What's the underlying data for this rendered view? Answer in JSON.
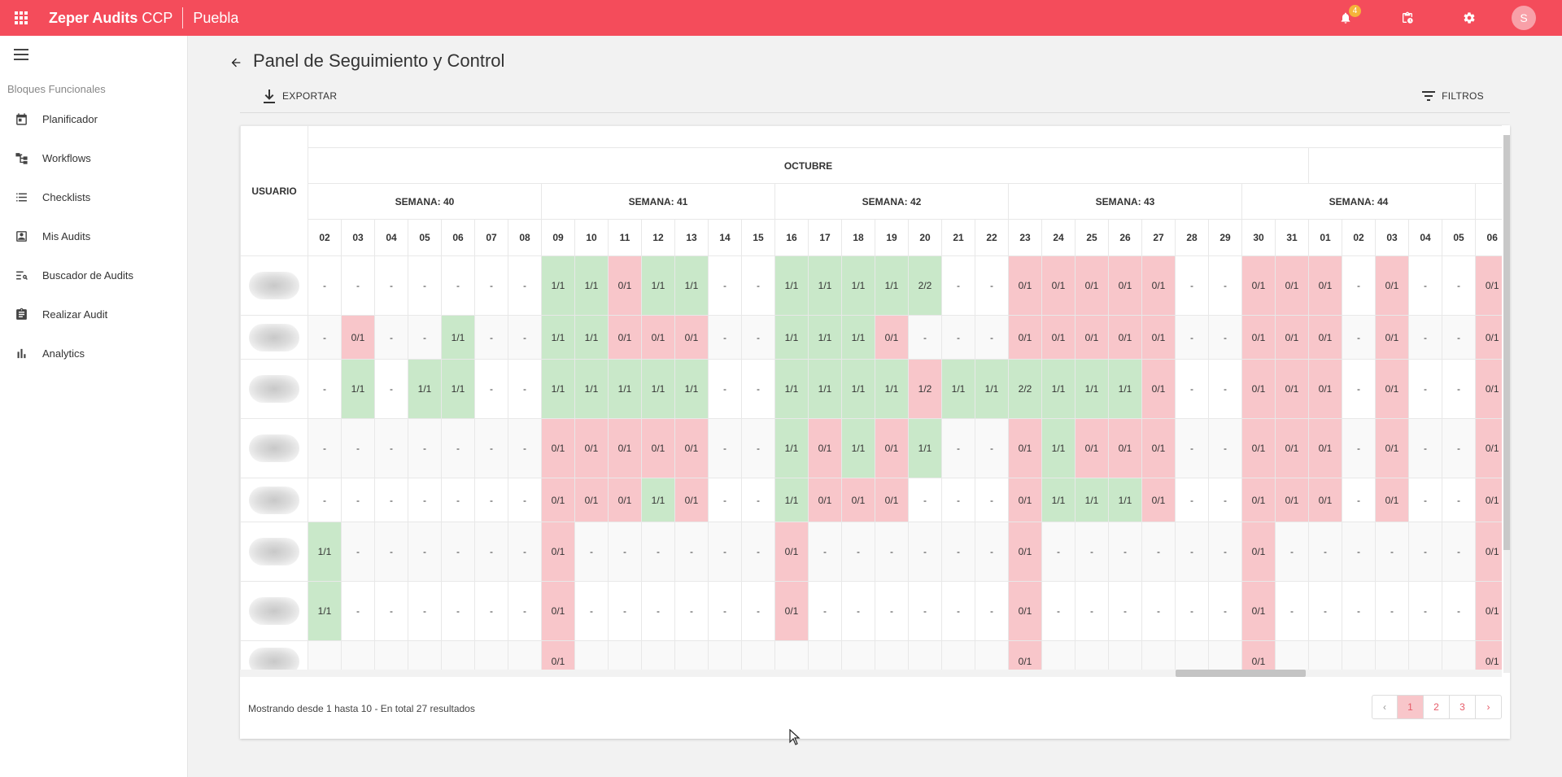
{
  "app": {
    "brand": "Zeper Audits",
    "brand_suffix": "CCP",
    "site": "Puebla",
    "notification_count": "4",
    "avatar_letter": "S",
    "accent_color": "#f44c5b"
  },
  "sidebar": {
    "section_title": "Bloques Funcionales",
    "items": [
      {
        "label": "Planificador",
        "icon": "calendar-icon"
      },
      {
        "label": "Workflows",
        "icon": "workflow-icon"
      },
      {
        "label": "Checklists",
        "icon": "list-icon"
      },
      {
        "label": "Mis Audits",
        "icon": "user-box-icon"
      },
      {
        "label": "Buscador de Audits",
        "icon": "search-list-icon"
      },
      {
        "label": "Realizar Audit",
        "icon": "clipboard-icon"
      },
      {
        "label": "Analytics",
        "icon": "bar-chart-icon"
      }
    ]
  },
  "page": {
    "title": "Panel de Seguimiento y Control",
    "export_label": "EXPORTAR",
    "filter_label": "FILTROS"
  },
  "grid": {
    "user_header": "USUARIO",
    "month": "OCTUBRE",
    "weeks": [
      {
        "label": "SEMANA: 40",
        "days": 7
      },
      {
        "label": "SEMANA: 41",
        "days": 7
      },
      {
        "label": "SEMANA: 42",
        "days": 7
      },
      {
        "label": "SEMANA: 43",
        "days": 7
      },
      {
        "label": "SEMANA: 44",
        "days": 7
      },
      {
        "label": "",
        "days": 1
      }
    ],
    "days": [
      "02",
      "03",
      "04",
      "05",
      "06",
      "07",
      "08",
      "09",
      "10",
      "11",
      "12",
      "13",
      "14",
      "15",
      "16",
      "17",
      "18",
      "19",
      "20",
      "21",
      "22",
      "23",
      "24",
      "25",
      "26",
      "27",
      "28",
      "29",
      "30",
      "31",
      "01",
      "02",
      "03",
      "04",
      "05",
      "06"
    ],
    "rows": [
      [
        "-",
        "-",
        "-",
        "-",
        "-",
        "-",
        "-",
        "1/1",
        "1/1",
        "0/1",
        "1/1",
        "1/1",
        "-",
        "-",
        "1/1",
        "1/1",
        "1/1",
        "1/1",
        "2/2",
        "-",
        "-",
        "0/1",
        "0/1",
        "0/1",
        "0/1",
        "0/1",
        "-",
        "-",
        "0/1",
        "0/1",
        "0/1",
        "-",
        "0/1",
        "-",
        "-",
        "0/1"
      ],
      [
        "-",
        "0/1",
        "-",
        "-",
        "1/1",
        "-",
        "-",
        "1/1",
        "1/1",
        "0/1",
        "0/1",
        "0/1",
        "-",
        "-",
        "1/1",
        "1/1",
        "1/1",
        "0/1",
        "-",
        "-",
        "-",
        "0/1",
        "0/1",
        "0/1",
        "0/1",
        "0/1",
        "-",
        "-",
        "0/1",
        "0/1",
        "0/1",
        "-",
        "0/1",
        "-",
        "-",
        "0/1"
      ],
      [
        "-",
        "1/1",
        "-",
        "1/1",
        "1/1",
        "-",
        "-",
        "1/1",
        "1/1",
        "1/1",
        "1/1",
        "1/1",
        "-",
        "-",
        "1/1",
        "1/1",
        "1/1",
        "1/1",
        "1/2",
        "1/1",
        "1/1",
        "2/2",
        "1/1",
        "1/1",
        "1/1",
        "0/1",
        "-",
        "-",
        "0/1",
        "0/1",
        "0/1",
        "-",
        "0/1",
        "-",
        "-",
        "0/1"
      ],
      [
        "-",
        "-",
        "-",
        "-",
        "-",
        "-",
        "-",
        "0/1",
        "0/1",
        "0/1",
        "0/1",
        "0/1",
        "-",
        "-",
        "1/1",
        "0/1",
        "1/1",
        "0/1",
        "1/1",
        "-",
        "-",
        "0/1",
        "1/1",
        "0/1",
        "0/1",
        "0/1",
        "-",
        "-",
        "0/1",
        "0/1",
        "0/1",
        "-",
        "0/1",
        "-",
        "-",
        "0/1"
      ],
      [
        "-",
        "-",
        "-",
        "-",
        "-",
        "-",
        "-",
        "0/1",
        "0/1",
        "0/1",
        "1/1",
        "0/1",
        "-",
        "-",
        "1/1",
        "0/1",
        "0/1",
        "0/1",
        "-",
        "-",
        "-",
        "0/1",
        "1/1",
        "1/1",
        "1/1",
        "0/1",
        "-",
        "-",
        "0/1",
        "0/1",
        "0/1",
        "-",
        "0/1",
        "-",
        "-",
        "0/1"
      ],
      [
        "1/1",
        "-",
        "-",
        "-",
        "-",
        "-",
        "-",
        "0/1",
        "-",
        "-",
        "-",
        "-",
        "-",
        "-",
        "0/1",
        "-",
        "-",
        "-",
        "-",
        "-",
        "-",
        "0/1",
        "-",
        "-",
        "-",
        "-",
        "-",
        "-",
        "0/1",
        "-",
        "-",
        "-",
        "-",
        "-",
        "-",
        "0/1"
      ],
      [
        "1/1",
        "-",
        "-",
        "-",
        "-",
        "-",
        "-",
        "0/1",
        "-",
        "-",
        "-",
        "-",
        "-",
        "-",
        "0/1",
        "-",
        "-",
        "-",
        "-",
        "-",
        "-",
        "0/1",
        "-",
        "-",
        "-",
        "-",
        "-",
        "-",
        "0/1",
        "-",
        "-",
        "-",
        "-",
        "-",
        "-",
        "0/1"
      ],
      [
        "",
        "",
        "",
        "",
        "",
        "",
        "",
        "0/1",
        "",
        "",
        "",
        "",
        "",
        "",
        "",
        "",
        "",
        "",
        "",
        "",
        "",
        "0/1",
        "",
        "",
        "",
        "",
        "",
        "",
        "0/1",
        "",
        "",
        "",
        "",
        "",
        "",
        "0/1"
      ]
    ],
    "status_colors": {
      "complete": "#c9e8c9",
      "missing": "#f8c6ca"
    }
  },
  "footer": {
    "results_text": "Mostrando desde 1 hasta 10 - En total 27 resultados",
    "prev": "‹",
    "pages": [
      "1",
      "2",
      "3"
    ],
    "next": "›",
    "current_page": "1"
  }
}
